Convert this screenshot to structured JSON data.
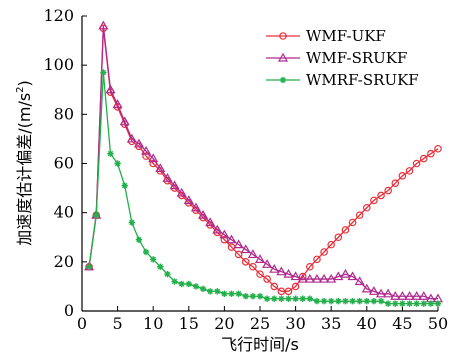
{
  "chart_data": {
    "type": "line",
    "title": "",
    "xlabel": "飞行时间/s",
    "ylabel_main": "加速度估计偏差/(m/s",
    "ylabel_sup": "2",
    "ylabel_tail": ")",
    "xlim": [
      0,
      50
    ],
    "ylim": [
      0,
      120
    ],
    "xticks": [
      0,
      5,
      10,
      15,
      20,
      25,
      30,
      35,
      40,
      45,
      50
    ],
    "yticks": [
      0,
      20,
      40,
      60,
      80,
      100,
      120
    ],
    "grid": false,
    "legend_position": "top-right",
    "x": [
      1,
      2,
      3,
      4,
      5,
      6,
      7,
      8,
      9,
      10,
      11,
      12,
      13,
      14,
      15,
      16,
      17,
      18,
      19,
      20,
      21,
      22,
      23,
      24,
      25,
      26,
      27,
      28,
      29,
      30,
      31,
      32,
      33,
      34,
      35,
      36,
      37,
      38,
      39,
      40,
      41,
      42,
      43,
      44,
      45,
      46,
      47,
      48,
      49,
      50
    ],
    "series": [
      {
        "name": "WMF-UKF",
        "color": "#e8303a",
        "marker": "circle",
        "values": [
          18,
          39,
          115,
          89,
          83,
          76,
          69,
          67,
          63,
          60,
          57,
          53,
          50,
          47,
          44,
          41,
          38,
          35,
          32,
          29,
          26,
          23,
          20,
          18,
          15,
          13,
          10,
          8,
          8,
          10,
          14,
          18,
          21,
          24,
          27,
          30,
          33,
          36,
          39,
          42,
          45,
          47,
          49,
          52,
          55,
          57,
          60,
          62,
          64,
          66
        ]
      },
      {
        "name": "WMF-SRUKF",
        "color": "#b02a8e",
        "marker": "triangle",
        "values": [
          18,
          39,
          116,
          90,
          84,
          77,
          70,
          68,
          65,
          62,
          58,
          54,
          51,
          48,
          45,
          42,
          39,
          36,
          33,
          31,
          29,
          27,
          25,
          23,
          21,
          19,
          17,
          16,
          15,
          14,
          13,
          13,
          13,
          13,
          13,
          14,
          15,
          14,
          12,
          9,
          8,
          7,
          7,
          6,
          6,
          6,
          6,
          6,
          5,
          5
        ]
      },
      {
        "name": "WMRF-SRUKF",
        "color": "#22b04a",
        "marker": "star",
        "values": [
          18,
          39,
          97,
          64,
          60,
          51,
          36,
          29,
          24,
          21,
          18,
          15,
          12,
          11,
          11,
          10,
          9,
          8,
          8,
          7,
          7,
          7,
          6,
          6,
          6,
          5,
          5,
          5,
          5,
          5,
          5,
          5,
          4,
          4,
          4,
          4,
          4,
          4,
          4,
          4,
          4,
          4,
          3,
          3,
          3,
          3,
          3,
          3,
          3,
          3
        ]
      }
    ]
  }
}
